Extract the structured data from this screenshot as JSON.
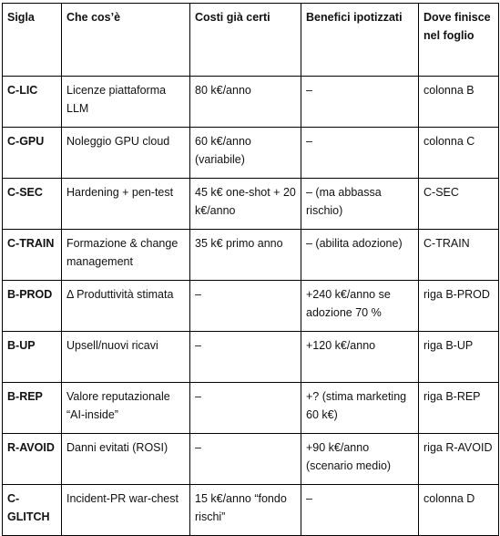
{
  "table": {
    "headers": [
      "Sigla",
      "Che cos’è",
      "Costi già certi",
      "Benefici ipotizzati",
      "Dove finisce nel foglio"
    ],
    "rows": [
      [
        "C-LIC",
        "Licenze piattaforma LLM",
        "80 k€/anno",
        "–",
        "colonna B"
      ],
      [
        "C-GPU",
        "Noleggio GPU cloud",
        "60 k€/anno (variabile)",
        "–",
        "colonna C"
      ],
      [
        "C-SEC",
        "Hardening + pen-test",
        "45 k€ one-shot + 20 k€/anno",
        "– (ma abbassa rischio)",
        "C-SEC"
      ],
      [
        "C-TRAIN",
        "Formazione & change management",
        "35 k€ primo anno",
        "– (abilita adozione)",
        "C-TRAIN"
      ],
      [
        "B-PROD",
        "Δ Produttività stimata",
        "–",
        "+240 k€/anno se adozione 70 %",
        "riga B-PROD"
      ],
      [
        "B-UP",
        "Upsell/nuovi ricavi",
        "–",
        "+120 k€/anno",
        "riga B-UP"
      ],
      [
        "B-REP",
        "Valore reputazionale “AI-inside”",
        "–",
        "+? (stima marketing 60 k€)",
        "riga B-REP"
      ],
      [
        "R-AVOID",
        "Danni evitati (ROSI)",
        "–",
        "+90 k€/anno (scenario medio)",
        "riga R-AVOID"
      ],
      [
        "C-GLITCH",
        "Incident-PR war-chest",
        "15 k€/anno “fondo rischi”",
        "–",
        "colonna D"
      ]
    ]
  }
}
